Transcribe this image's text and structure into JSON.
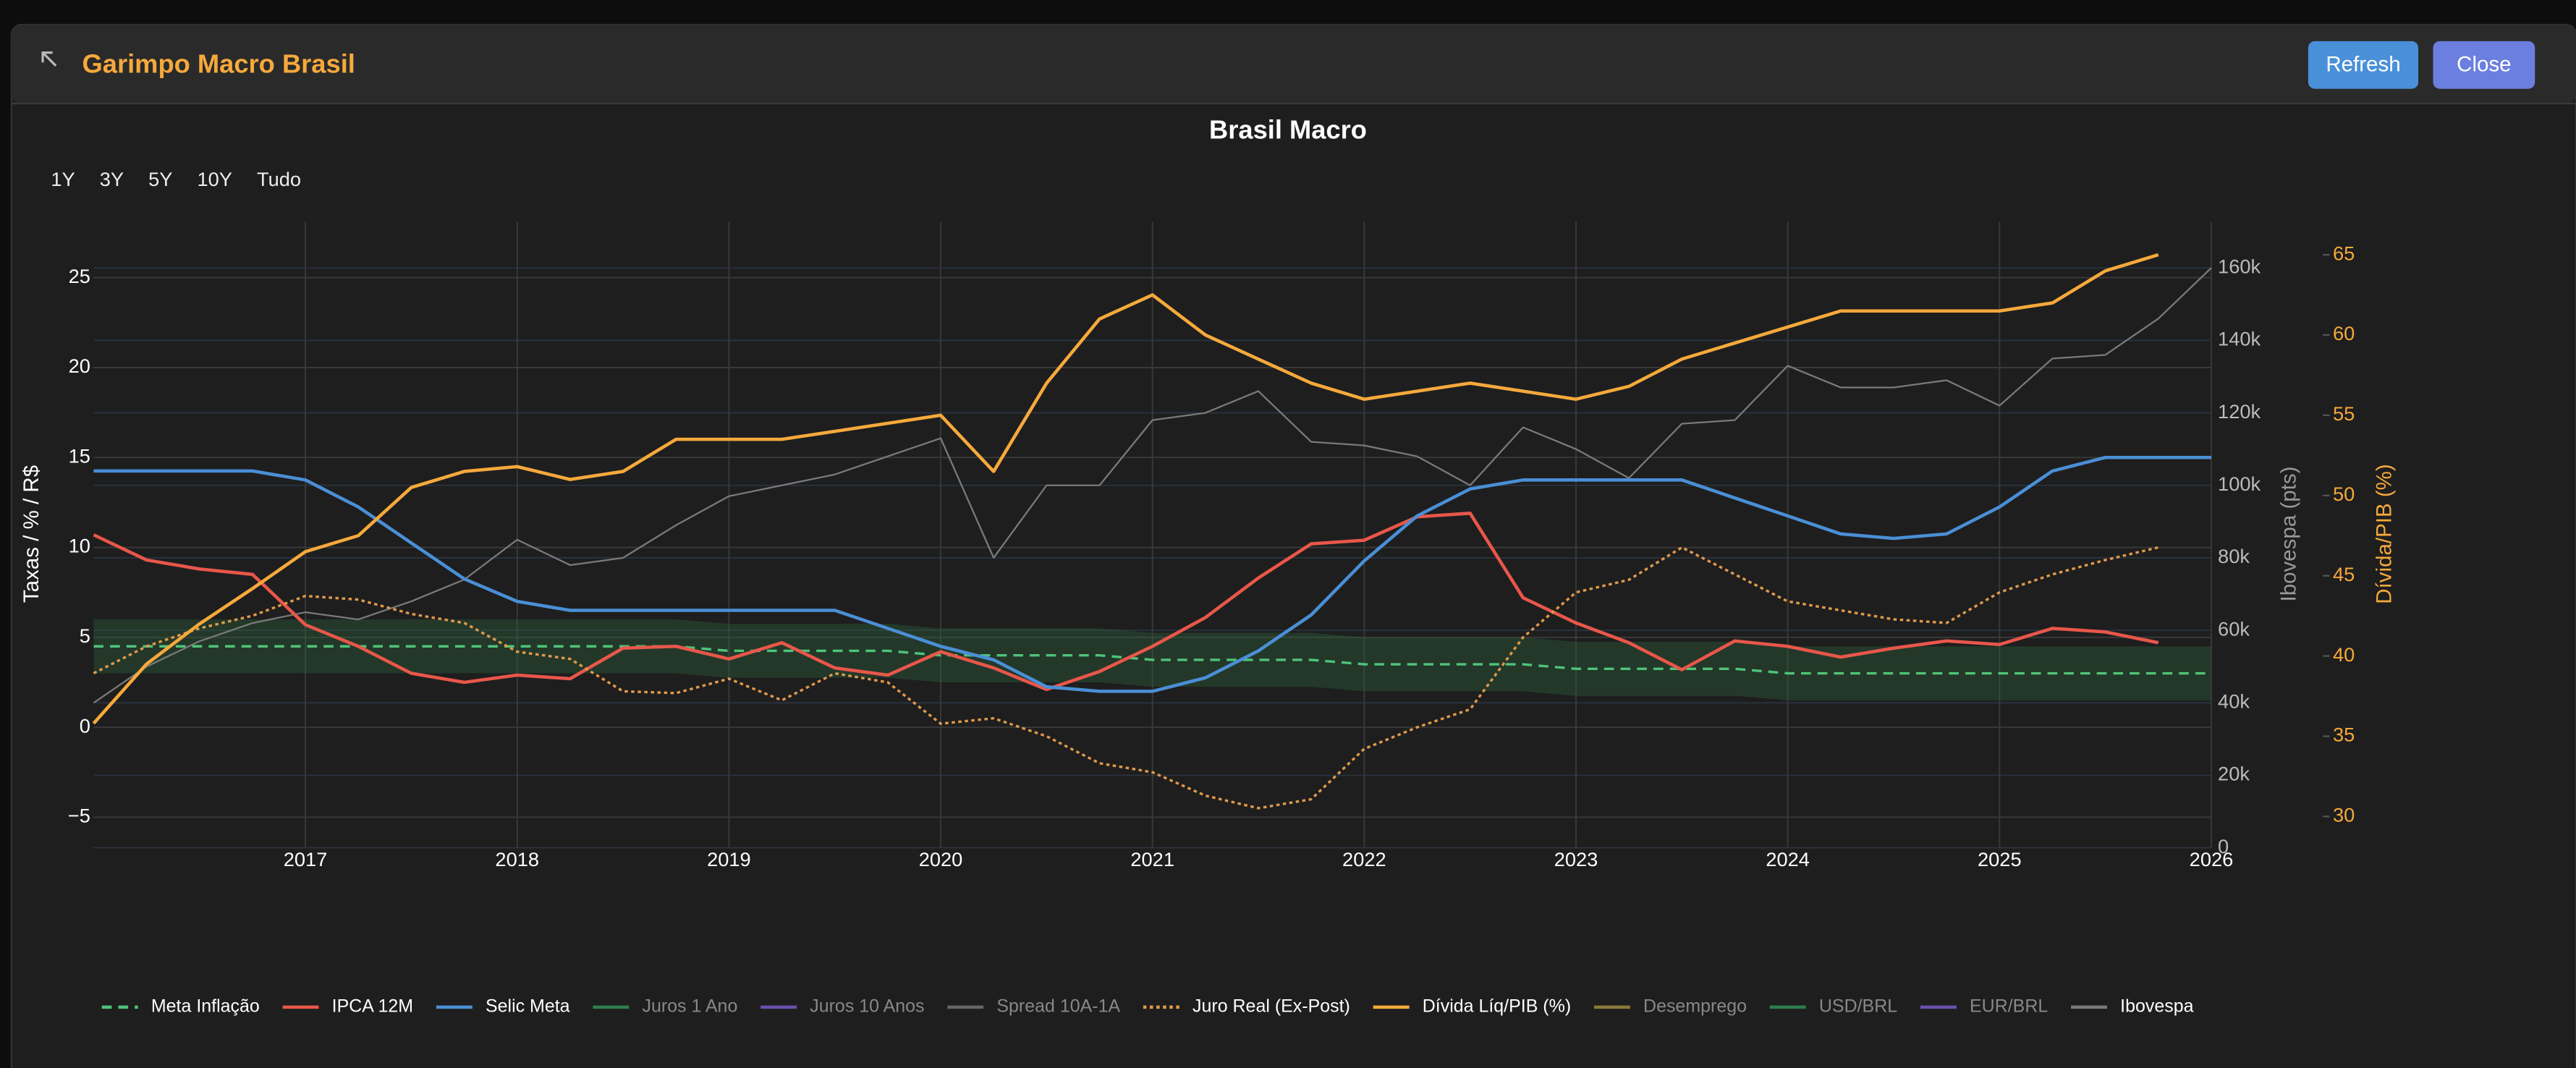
{
  "header": {
    "title": "Garimpo Macro Brasil",
    "buttons": [
      "Refresh",
      "Close"
    ]
  },
  "chart_data": {
    "type": "line",
    "title": "Brasil Macro",
    "range_buttons": [
      "1Y",
      "3Y",
      "5Y",
      "10Y",
      "Tudo"
    ],
    "y_label": "Taxas / % / R$",
    "y2_label": "Ibovespa (pts)",
    "y3_label": "Dívida/PIB (%)",
    "x": [
      2016,
      2016.25,
      2016.5,
      2016.75,
      2017,
      2017.25,
      2017.5,
      2017.75,
      2018,
      2018.25,
      2018.5,
      2018.75,
      2019,
      2019.25,
      2019.5,
      2019.75,
      2020,
      2020.25,
      2020.5,
      2020.75,
      2021,
      2021.25,
      2021.5,
      2021.75,
      2022,
      2022.25,
      2022.5,
      2022.75,
      2023,
      2023.25,
      2023.5,
      2023.75,
      2024,
      2024.25,
      2024.5,
      2024.75,
      2025,
      2025.25,
      2025.5,
      2025.75,
      2026
    ],
    "xlim": [
      2016,
      2026
    ],
    "xticks": [
      2017,
      2018,
      2019,
      2020,
      2021,
      2022,
      2023,
      2024,
      2025,
      2026
    ],
    "ylim": [
      -6.7,
      28.1
    ],
    "yticks": [
      {
        "value": -5,
        "label": "−5"
      },
      0,
      5,
      10,
      15,
      20,
      25
    ],
    "y2lim": [
      0,
      172700
    ],
    "y2ticks": [
      0,
      {
        "value": 20000,
        "label": "20k"
      },
      {
        "value": 40000,
        "label": "40k"
      },
      {
        "value": 60000,
        "label": "60k"
      },
      {
        "value": 80000,
        "label": "80k"
      },
      {
        "value": 100000,
        "label": "100k"
      },
      {
        "value": 120000,
        "label": "120k"
      },
      {
        "value": 140000,
        "label": "140k"
      },
      {
        "value": 160000,
        "label": "160k"
      }
    ],
    "y3lim": [
      28.05,
      67.05
    ],
    "y3ticks": [
      30,
      35,
      40,
      45,
      50,
      55,
      60,
      65
    ],
    "grid": true,
    "band": {
      "color": "#2f6b3f",
      "upper": [
        6,
        6,
        6,
        6,
        6,
        6,
        6,
        6,
        6,
        6,
        6,
        6,
        5.75,
        5.75,
        5.75,
        5.75,
        5.5,
        5.5,
        5.5,
        5.5,
        5.25,
        5.25,
        5.25,
        5.25,
        5,
        5,
        5,
        5,
        4.75,
        4.75,
        4.75,
        4.75,
        4.5,
        4.5,
        4.5,
        4.5,
        4.5,
        4.5,
        4.5,
        4.5,
        4.5
      ],
      "lower": [
        3,
        3,
        3,
        3,
        3,
        3,
        3,
        3,
        3,
        3,
        3,
        3,
        2.75,
        2.75,
        2.75,
        2.75,
        2.5,
        2.5,
        2.5,
        2.5,
        2.25,
        2.25,
        2.25,
        2.25,
        2,
        2,
        2,
        2,
        1.75,
        1.75,
        1.75,
        1.75,
        1.5,
        1.5,
        1.5,
        1.5,
        1.5,
        1.5,
        1.5,
        1.5,
        1.5
      ]
    },
    "series": [
      {
        "name": "Meta Inflação",
        "color": "#4fc37a",
        "dash": "dashed",
        "values": [
          4.5,
          4.5,
          4.5,
          4.5,
          4.5,
          4.5,
          4.5,
          4.5,
          4.5,
          4.5,
          4.5,
          4.5,
          4.25,
          4.25,
          4.25,
          4.25,
          4.0,
          4.0,
          4.0,
          4.0,
          3.75,
          3.75,
          3.75,
          3.75,
          3.5,
          3.5,
          3.5,
          3.5,
          3.25,
          3.25,
          3.25,
          3.25,
          3.0,
          3.0,
          3.0,
          3.0,
          3.0,
          3.0,
          3.0,
          3.0,
          3.0
        ]
      },
      {
        "name": "IPCA 12M",
        "color": "#e8574a",
        "values": [
          10.7,
          9.3,
          8.8,
          8.5,
          5.7,
          4.5,
          3.0,
          2.5,
          2.9,
          2.7,
          4.4,
          4.5,
          3.8,
          4.7,
          3.3,
          2.9,
          4.2,
          3.3,
          2.1,
          3.1,
          4.5,
          6.1,
          8.3,
          10.2,
          10.4,
          11.7,
          11.9,
          7.2,
          5.8,
          4.7,
          3.2,
          4.8,
          4.5,
          3.9,
          4.4,
          4.8,
          4.6,
          5.5,
          5.3,
          4.7,
          null
        ]
      },
      {
        "name": "Selic Meta",
        "color": "#4a8fd6",
        "values": [
          14.25,
          14.25,
          14.25,
          14.25,
          13.75,
          12.25,
          10.25,
          8.25,
          7.0,
          6.5,
          6.5,
          6.5,
          6.5,
          6.5,
          6.5,
          5.5,
          4.5,
          3.75,
          2.25,
          2.0,
          2.0,
          2.75,
          4.25,
          6.25,
          9.25,
          11.75,
          13.25,
          13.75,
          13.75,
          13.75,
          13.75,
          12.75,
          11.75,
          10.75,
          10.5,
          10.75,
          12.25,
          14.25,
          15.0,
          15.0,
          15.0
        ]
      },
      {
        "name": "Juros 1 Ano",
        "color": "#2e7d4f",
        "visible": false
      },
      {
        "name": "Juros 10 Anos",
        "color": "#6a4fb0",
        "visible": false
      },
      {
        "name": "Spread 10A-1A",
        "color": "#666666",
        "visible": false
      },
      {
        "name": "Juro Real (Ex-Post)",
        "color": "#e09a4a",
        "dash": "dotted",
        "values": [
          3.0,
          4.5,
          5.5,
          6.2,
          7.3,
          7.1,
          6.3,
          5.8,
          4.2,
          3.8,
          2.0,
          1.9,
          2.7,
          1.5,
          3.0,
          2.5,
          0.2,
          0.5,
          -0.5,
          -2.0,
          -2.5,
          -3.8,
          -4.5,
          -4.0,
          -1.2,
          0.0,
          1.0,
          5.0,
          7.5,
          8.2,
          10.0,
          8.5,
          7.0,
          6.5,
          6.0,
          5.8,
          7.5,
          8.5,
          9.3,
          10.0,
          null
        ]
      },
      {
        "name": "Dívida Líq/PIB (%)",
        "color": "#f6a93b",
        "axis": "y3",
        "values": [
          35.8,
          39.5,
          42,
          44.2,
          46.5,
          47.5,
          50.5,
          51.5,
          51.8,
          51.0,
          51.5,
          53.5,
          53.5,
          53.5,
          54.0,
          54.5,
          55.0,
          51.5,
          57.0,
          61.0,
          62.5,
          60.0,
          58.5,
          57.0,
          56.0,
          56.5,
          57.0,
          56.5,
          56.0,
          56.8,
          58.5,
          59.5,
          60.5,
          61.5,
          61.5,
          61.5,
          61.5,
          62.0,
          64.0,
          65.0,
          null
        ]
      },
      {
        "name": "Desemprego",
        "color": "#8a7a3a",
        "visible": false
      },
      {
        "name": "USD/BRL",
        "color": "#2e7d4f",
        "visible": false
      },
      {
        "name": "EUR/BRL",
        "color": "#6a4fb0",
        "visible": false
      },
      {
        "name": "Ibovespa",
        "color": "#7a7a7a",
        "axis": "y2",
        "values": [
          40000,
          50000,
          57000,
          62000,
          65000,
          63000,
          68000,
          74000,
          85000,
          78000,
          80000,
          89000,
          97000,
          100000,
          103000,
          108000,
          113000,
          80000,
          100000,
          100000,
          118000,
          120000,
          126000,
          112000,
          111000,
          108000,
          100000,
          116000,
          110000,
          102000,
          117000,
          118000,
          133000,
          127000,
          127000,
          129000,
          122000,
          135000,
          136000,
          146000,
          160000
        ]
      }
    ]
  }
}
